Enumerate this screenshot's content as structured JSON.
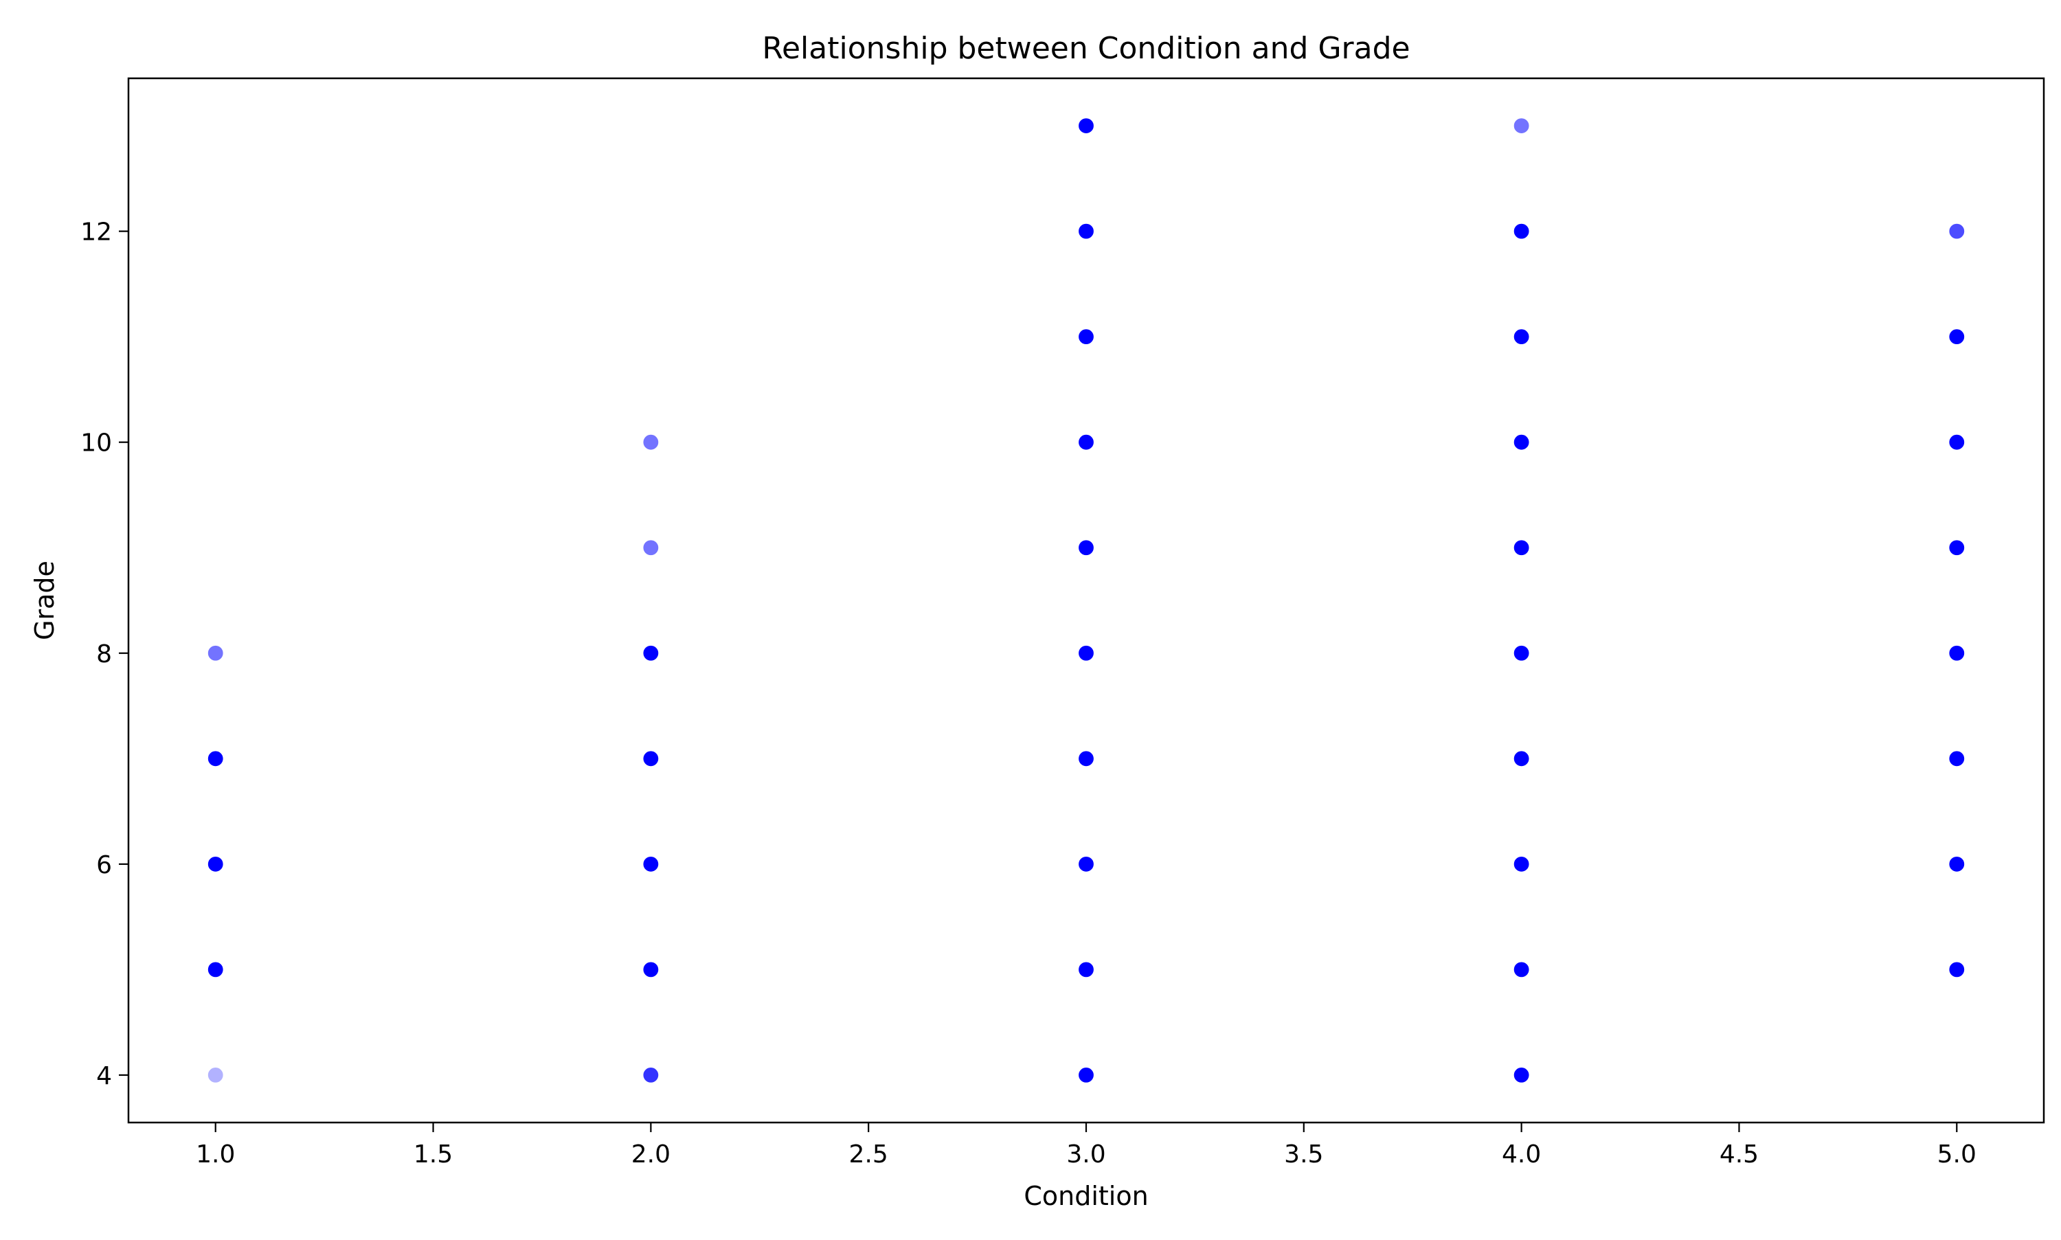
{
  "chart_data": {
    "type": "scatter",
    "title": "Relationship between Condition and Grade",
    "xlabel": "Condition",
    "ylabel": "Grade",
    "xlim": [
      0.8,
      5.2
    ],
    "ylim": [
      3.55,
      13.45
    ],
    "xticks": [
      1.0,
      1.5,
      2.0,
      2.5,
      3.0,
      3.5,
      4.0,
      4.5,
      5.0
    ],
    "xtick_labels": [
      "1.0",
      "1.5",
      "2.0",
      "2.5",
      "3.0",
      "3.5",
      "4.0",
      "4.5",
      "5.0"
    ],
    "yticks": [
      4,
      6,
      8,
      10,
      12
    ],
    "ytick_labels": [
      "4",
      "6",
      "8",
      "10",
      "12"
    ],
    "grid": false,
    "marker_color": "#0000ff",
    "points": [
      {
        "x": 1,
        "y": 4,
        "alpha": 0.3
      },
      {
        "x": 1,
        "y": 5,
        "alpha": 1.0
      },
      {
        "x": 1,
        "y": 6,
        "alpha": 1.0
      },
      {
        "x": 1,
        "y": 7,
        "alpha": 1.0
      },
      {
        "x": 1,
        "y": 8,
        "alpha": 0.55
      },
      {
        "x": 2,
        "y": 4,
        "alpha": 0.8
      },
      {
        "x": 2,
        "y": 5,
        "alpha": 1.0
      },
      {
        "x": 2,
        "y": 6,
        "alpha": 1.0
      },
      {
        "x": 2,
        "y": 7,
        "alpha": 1.0
      },
      {
        "x": 2,
        "y": 8,
        "alpha": 1.0
      },
      {
        "x": 2,
        "y": 9,
        "alpha": 0.55
      },
      {
        "x": 2,
        "y": 10,
        "alpha": 0.55
      },
      {
        "x": 3,
        "y": 4,
        "alpha": 1.0
      },
      {
        "x": 3,
        "y": 5,
        "alpha": 1.0
      },
      {
        "x": 3,
        "y": 6,
        "alpha": 1.0
      },
      {
        "x": 3,
        "y": 7,
        "alpha": 1.0
      },
      {
        "x": 3,
        "y": 8,
        "alpha": 1.0
      },
      {
        "x": 3,
        "y": 9,
        "alpha": 1.0
      },
      {
        "x": 3,
        "y": 10,
        "alpha": 1.0
      },
      {
        "x": 3,
        "y": 11,
        "alpha": 1.0
      },
      {
        "x": 3,
        "y": 12,
        "alpha": 1.0
      },
      {
        "x": 3,
        "y": 13,
        "alpha": 1.0
      },
      {
        "x": 4,
        "y": 4,
        "alpha": 1.0
      },
      {
        "x": 4,
        "y": 5,
        "alpha": 1.0
      },
      {
        "x": 4,
        "y": 6,
        "alpha": 1.0
      },
      {
        "x": 4,
        "y": 7,
        "alpha": 1.0
      },
      {
        "x": 4,
        "y": 8,
        "alpha": 1.0
      },
      {
        "x": 4,
        "y": 9,
        "alpha": 1.0
      },
      {
        "x": 4,
        "y": 10,
        "alpha": 1.0
      },
      {
        "x": 4,
        "y": 11,
        "alpha": 1.0
      },
      {
        "x": 4,
        "y": 12,
        "alpha": 1.0
      },
      {
        "x": 4,
        "y": 13,
        "alpha": 0.55
      },
      {
        "x": 5,
        "y": 5,
        "alpha": 1.0
      },
      {
        "x": 5,
        "y": 6,
        "alpha": 1.0
      },
      {
        "x": 5,
        "y": 7,
        "alpha": 1.0
      },
      {
        "x": 5,
        "y": 8,
        "alpha": 1.0
      },
      {
        "x": 5,
        "y": 9,
        "alpha": 1.0
      },
      {
        "x": 5,
        "y": 10,
        "alpha": 1.0
      },
      {
        "x": 5,
        "y": 11,
        "alpha": 1.0
      },
      {
        "x": 5,
        "y": 12,
        "alpha": 0.7
      }
    ]
  }
}
